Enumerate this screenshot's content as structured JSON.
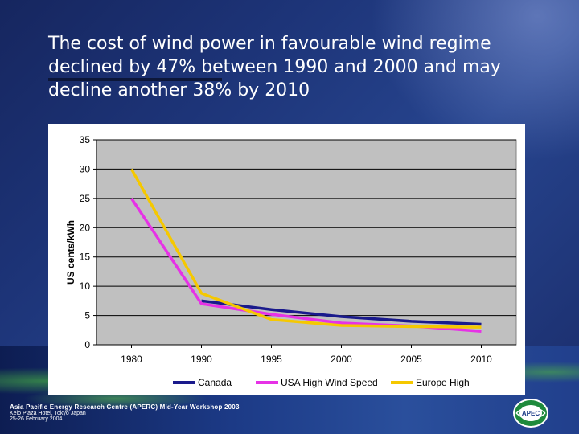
{
  "slide": {
    "title": "The cost of wind power in favourable wind regime declined by 47% between 1990 and 2000 and may decline another 38% by 2010"
  },
  "footer": {
    "line1": "Asia Pacific Energy Research Centre (APERC) Mid-Year Workshop 2003",
    "line2": "Keio Plaza Hotel, Tokyo Japan",
    "line3": "25-26 February 2004",
    "logo_text": "APEC"
  },
  "colors": {
    "background": "#1d3478",
    "canada": "#1a1a8c",
    "usa": "#e632e6",
    "europe": "#f5c800"
  },
  "chart_data": {
    "type": "line",
    "title": "",
    "xlabel": "",
    "ylabel": "US cents/kWh",
    "categories": [
      "1980",
      "1990",
      "1995",
      "2000",
      "2005",
      "2010"
    ],
    "ylim": [
      0,
      35
    ],
    "yticks": [
      "0",
      "5",
      "10",
      "15",
      "20",
      "25",
      "30",
      "35"
    ],
    "grid": true,
    "legend_position": "bottom",
    "series": [
      {
        "name": "Canada",
        "color": "#1a1a8c",
        "values": [
          null,
          7.5,
          6,
          4.8,
          4,
          3.5
        ]
      },
      {
        "name": "USA High Wind Speed",
        "color": "#e632e6",
        "values": [
          25,
          7,
          5.2,
          3.7,
          3.2,
          2.3
        ]
      },
      {
        "name": "Europe High",
        "color": "#f5c800",
        "values": [
          30,
          8.8,
          4.3,
          3.3,
          3.1,
          3
        ]
      }
    ]
  }
}
